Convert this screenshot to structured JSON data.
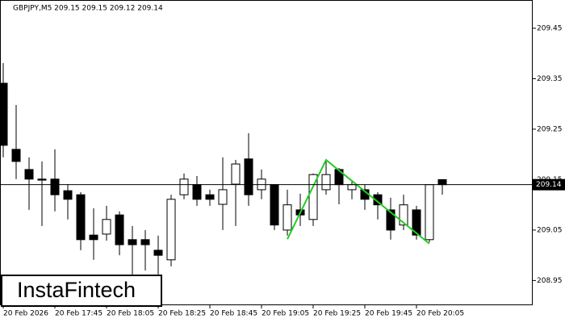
{
  "chart_data": {
    "type": "candlestick",
    "title": "GBPJPY,M5  209.15 209.15 209.12 209.14",
    "logo": "InstaFintech",
    "categories": [
      "20 Feb 2026",
      null,
      null,
      null,
      "20 Feb 17:45",
      null,
      null,
      null,
      "20 Feb 18:05",
      null,
      null,
      null,
      "20 Feb 18:25",
      null,
      null,
      null,
      "20 Feb 18:45",
      null,
      null,
      null,
      "20 Feb 19:05",
      null,
      null,
      null,
      "20 Feb 19:25",
      null,
      null,
      null,
      "20 Feb 19:45",
      null,
      null,
      null,
      "20 Feb 20:05",
      null,
      null
    ],
    "open": [
      209.341,
      209.21,
      209.17,
      209.151,
      209.151,
      209.128,
      209.12,
      209.04,
      209.042,
      209.08,
      209.031,
      209.031,
      209.01,
      208.991,
      209.12,
      209.14,
      209.12,
      209.101,
      209.141,
      209.191,
      209.13,
      209.14,
      209.05,
      209.09,
      209.071,
      209.13,
      209.17,
      209.13,
      209.13,
      209.12,
      209.09,
      209.06,
      209.09,
      209.031,
      209.15
    ],
    "high": [
      209.381,
      209.298,
      209.194,
      209.186,
      209.21,
      209.141,
      209.125,
      209.093,
      209.098,
      209.087,
      209.058,
      209.05,
      209.039,
      209.12,
      209.162,
      209.157,
      209.13,
      209.194,
      209.189,
      209.242,
      209.17,
      209.141,
      209.13,
      209.122,
      209.162,
      209.186,
      209.173,
      209.146,
      209.14,
      209.125,
      209.114,
      209.12,
      209.098,
      209.14,
      209.15
    ],
    "low": [
      209.194,
      209.151,
      209.09,
      209.058,
      209.087,
      209.071,
      209.01,
      208.991,
      209.029,
      209.0,
      208.962,
      208.97,
      208.962,
      208.978,
      209.111,
      209.098,
      209.098,
      209.05,
      209.058,
      209.098,
      209.111,
      209.05,
      209.039,
      209.058,
      209.058,
      209.12,
      209.101,
      209.111,
      209.09,
      209.071,
      209.031,
      209.05,
      209.031,
      209.026,
      209.12
    ],
    "close": [
      209.218,
      209.186,
      209.151,
      209.149,
      209.12,
      209.111,
      209.031,
      209.031,
      209.071,
      209.021,
      209.021,
      209.021,
      209.0,
      209.111,
      209.151,
      209.111,
      209.111,
      209.13,
      209.181,
      209.12,
      209.151,
      209.06,
      209.1,
      209.08,
      209.16,
      209.16,
      209.14,
      209.14,
      209.111,
      209.1,
      209.05,
      209.1,
      209.04,
      209.14,
      209.14
    ],
    "bull_color": "#ffffff",
    "bear_color": "#000000",
    "pattern": {
      "color": "#22cc22",
      "x": [
        22,
        25,
        33
      ],
      "values": [
        209.032,
        209.189,
        209.023
      ]
    },
    "current_price": 209.14,
    "ylim": [
      208.901,
      209.506
    ],
    "yticks": [
      208.95,
      209.05,
      209.15,
      209.25,
      209.35,
      209.45
    ]
  }
}
